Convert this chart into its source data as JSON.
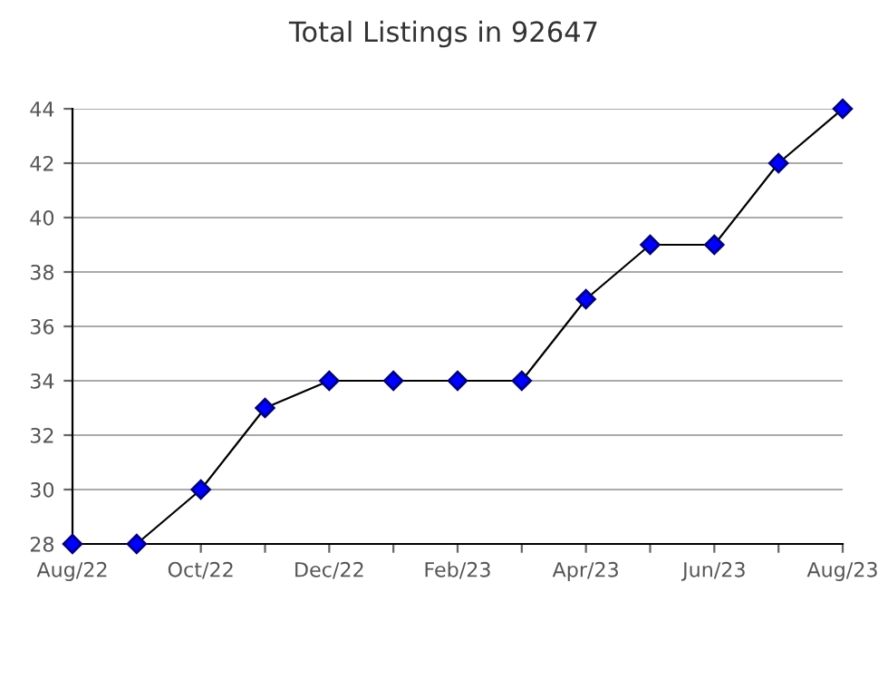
{
  "chart_data": {
    "type": "line",
    "title": "Total Listings in 92647",
    "categories": [
      "Aug/22",
      null,
      "Oct/22",
      null,
      "Dec/22",
      null,
      "Feb/23",
      null,
      "Apr/23",
      null,
      "Jun/23",
      null,
      "Aug/23"
    ],
    "series": [
      {
        "color": "#0000ff",
        "values": [
          28,
          28,
          30,
          33,
          34,
          34,
          34,
          34,
          37,
          39,
          39,
          42,
          44
        ]
      }
    ],
    "ylim": [
      28,
      44
    ],
    "yticks": [
      28,
      30,
      32,
      34,
      36,
      38,
      40,
      42,
      44
    ],
    "grid": "y",
    "marker": "diamond",
    "line_style": "solid"
  }
}
